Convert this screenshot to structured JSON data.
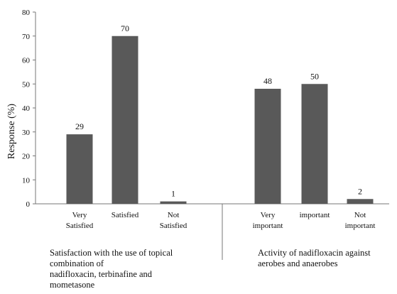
{
  "chart_data": {
    "type": "bar",
    "title": "",
    "xlabel": "",
    "ylabel": "Response (%)",
    "ylim": [
      0,
      80
    ],
    "yticks": [
      0,
      10,
      20,
      30,
      40,
      50,
      60,
      70,
      80
    ],
    "grid": false,
    "legend": "none",
    "bar_color": "#595959",
    "groups": [
      {
        "label_lines": [
          "Satisfaction with the use of topical",
          "combination of",
          "nadifloxacin, terbinafine and",
          "mometasone"
        ],
        "bars": [
          {
            "category_lines": [
              "Very",
              "Satisfied"
            ],
            "value": 29
          },
          {
            "category_lines": [
              "Satisfied"
            ],
            "value": 70
          },
          {
            "category_lines": [
              "Not",
              "Satisfied"
            ],
            "value": 1
          }
        ]
      },
      {
        "label_lines": [
          "Activity of nadifloxacin against",
          "aerobes and anaerobes"
        ],
        "bars": [
          {
            "category_lines": [
              "Very",
              "important"
            ],
            "value": 48
          },
          {
            "category_lines": [
              "important"
            ],
            "value": 50
          },
          {
            "category_lines": [
              "Not",
              "important"
            ],
            "value": 2
          }
        ]
      }
    ]
  }
}
